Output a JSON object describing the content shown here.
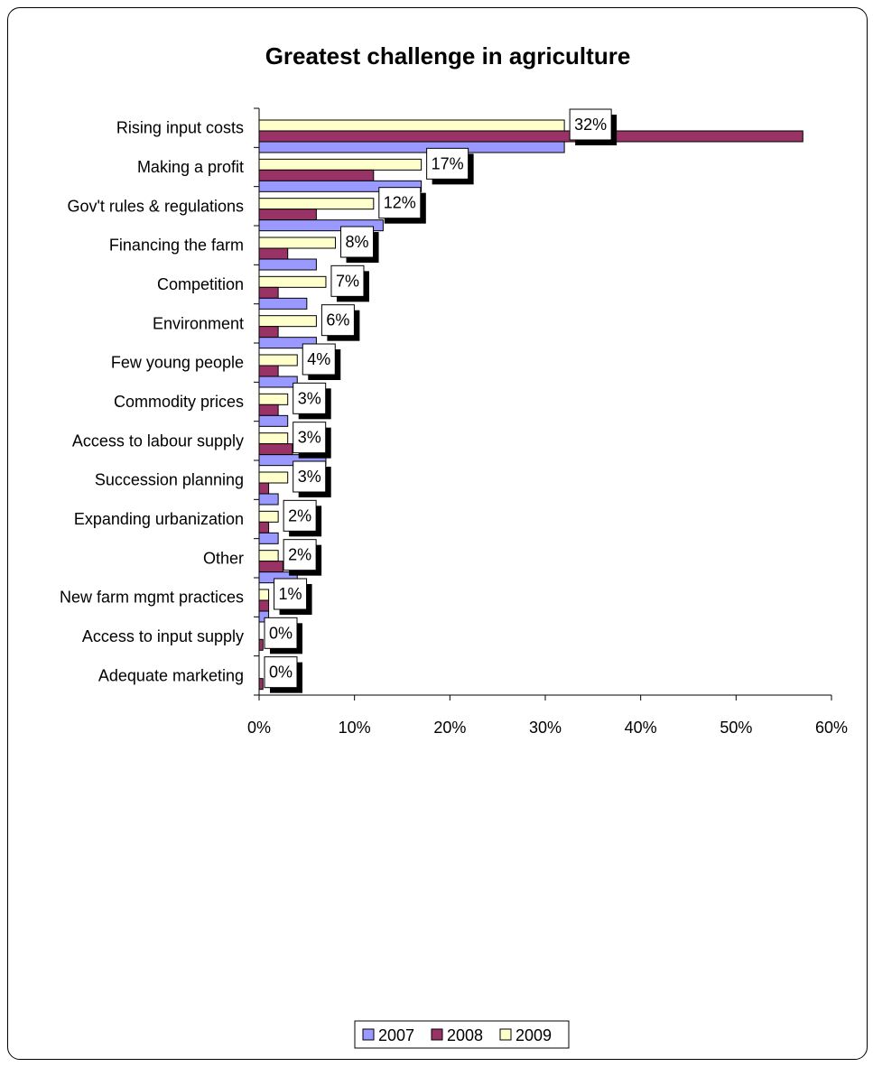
{
  "chart_data": {
    "type": "bar",
    "orientation": "horizontal",
    "title": "Greatest challenge in agriculture",
    "categories": [
      "Rising input costs",
      "Making a profit",
      "Gov't rules & regulations",
      "Financing the farm",
      "Competition",
      "Environment",
      "Few  young people",
      "Commodity prices",
      "Access to labour supply",
      "Succession planning",
      "Expanding urbanization",
      "Other",
      "New farm mgmt practices",
      "Access to input supply",
      "Adequate marketing"
    ],
    "series": [
      {
        "name": "2007",
        "color": "#9999ff",
        "values": [
          32,
          17,
          13,
          6,
          5,
          6,
          4,
          3,
          7,
          2,
          2,
          4,
          1,
          0,
          0
        ]
      },
      {
        "name": "2008",
        "color": "#993366",
        "values": [
          57,
          12,
          6,
          3,
          2,
          2,
          2,
          2,
          3.5,
          1,
          1,
          2.5,
          1,
          0.4,
          0.4
        ]
      },
      {
        "name": "2009",
        "color": "#ffffcc",
        "values": [
          32,
          17,
          12,
          8,
          7,
          6,
          4,
          3,
          3,
          3,
          2,
          2,
          1,
          0,
          0
        ]
      }
    ],
    "data_labels": [
      "32%",
      "17%",
      "12%",
      "8%",
      "7%",
      "6%",
      "4%",
      "3%",
      "3%",
      "3%",
      "2%",
      "2%",
      "1%",
      "0%",
      "0%"
    ],
    "x_ticks": [
      "0%",
      "10%",
      "20%",
      "30%",
      "40%",
      "50%",
      "60%"
    ],
    "xlim": [
      0,
      60
    ],
    "grid": false,
    "legend": "bottom"
  }
}
